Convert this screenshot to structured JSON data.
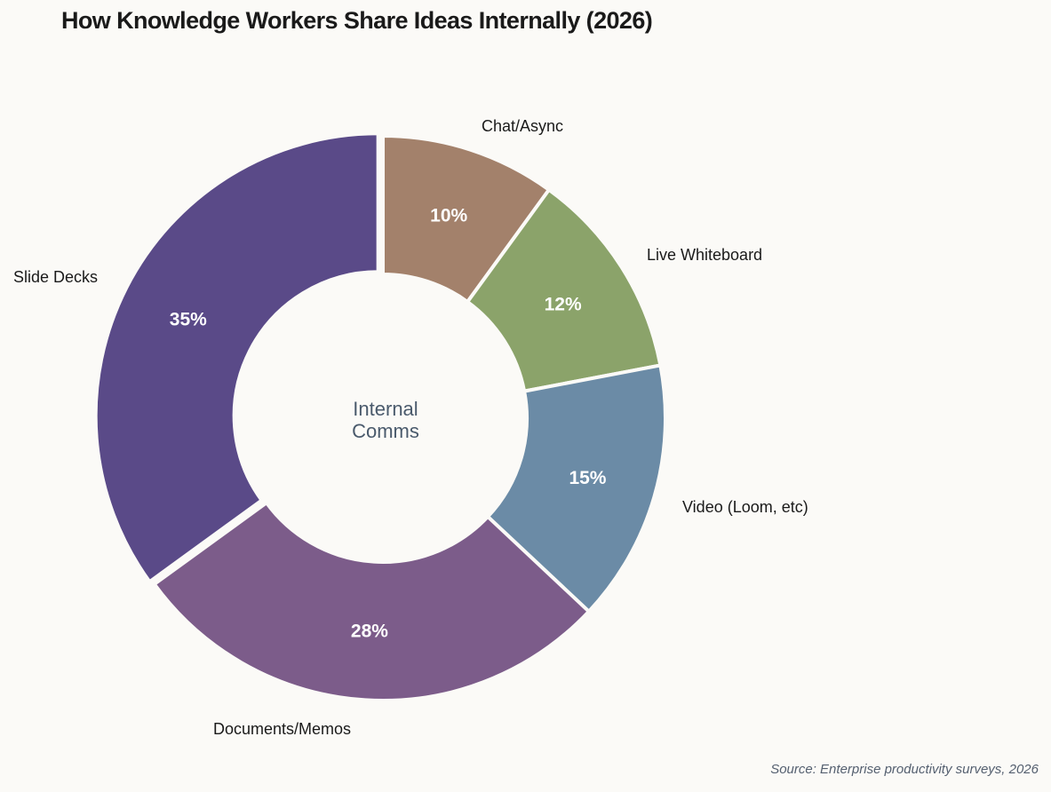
{
  "chart_data": {
    "type": "pie",
    "subtype": "donut",
    "title": "How Knowledge Workers Share Ideas Internally (2026)",
    "center_label": [
      "Internal",
      "Comms"
    ],
    "source": "Source: Enterprise productivity surveys, 2026",
    "start_angle": "12 o'clock, clockwise",
    "categories": [
      "Chat/Async",
      "Live Whiteboard",
      "Video (Loom, etc)",
      "Documents/Memos",
      "Slide Decks"
    ],
    "values": [
      10,
      12,
      15,
      28,
      35
    ],
    "unit": "%",
    "colors": [
      "#a3816b",
      "#8ba36a",
      "#6b8ba6",
      "#7c5c8a",
      "#5a4a88"
    ],
    "exploded": [
      "Slide Decks"
    ],
    "slices": [
      {
        "label": "Chat/Async",
        "value": 10,
        "pct_label": "10%",
        "color": "#a3816b"
      },
      {
        "label": "Live Whiteboard",
        "value": 12,
        "pct_label": "12%",
        "color": "#8ba36a"
      },
      {
        "label": "Video (Loom, etc)",
        "value": 15,
        "pct_label": "15%",
        "color": "#6b8ba6"
      },
      {
        "label": "Documents/Memos",
        "value": 28,
        "pct_label": "28%",
        "color": "#7c5c8a"
      },
      {
        "label": "Slide Decks",
        "value": 35,
        "pct_label": "35%",
        "color": "#5a4a88"
      }
    ],
    "legend": "none (labels placed outside slices)"
  },
  "page": {
    "title": "How Knowledge Workers Share Ideas Internally (2026)",
    "source": "Source: Enterprise productivity surveys, 2026",
    "center_line1": "Internal",
    "center_line2": "Comms"
  }
}
